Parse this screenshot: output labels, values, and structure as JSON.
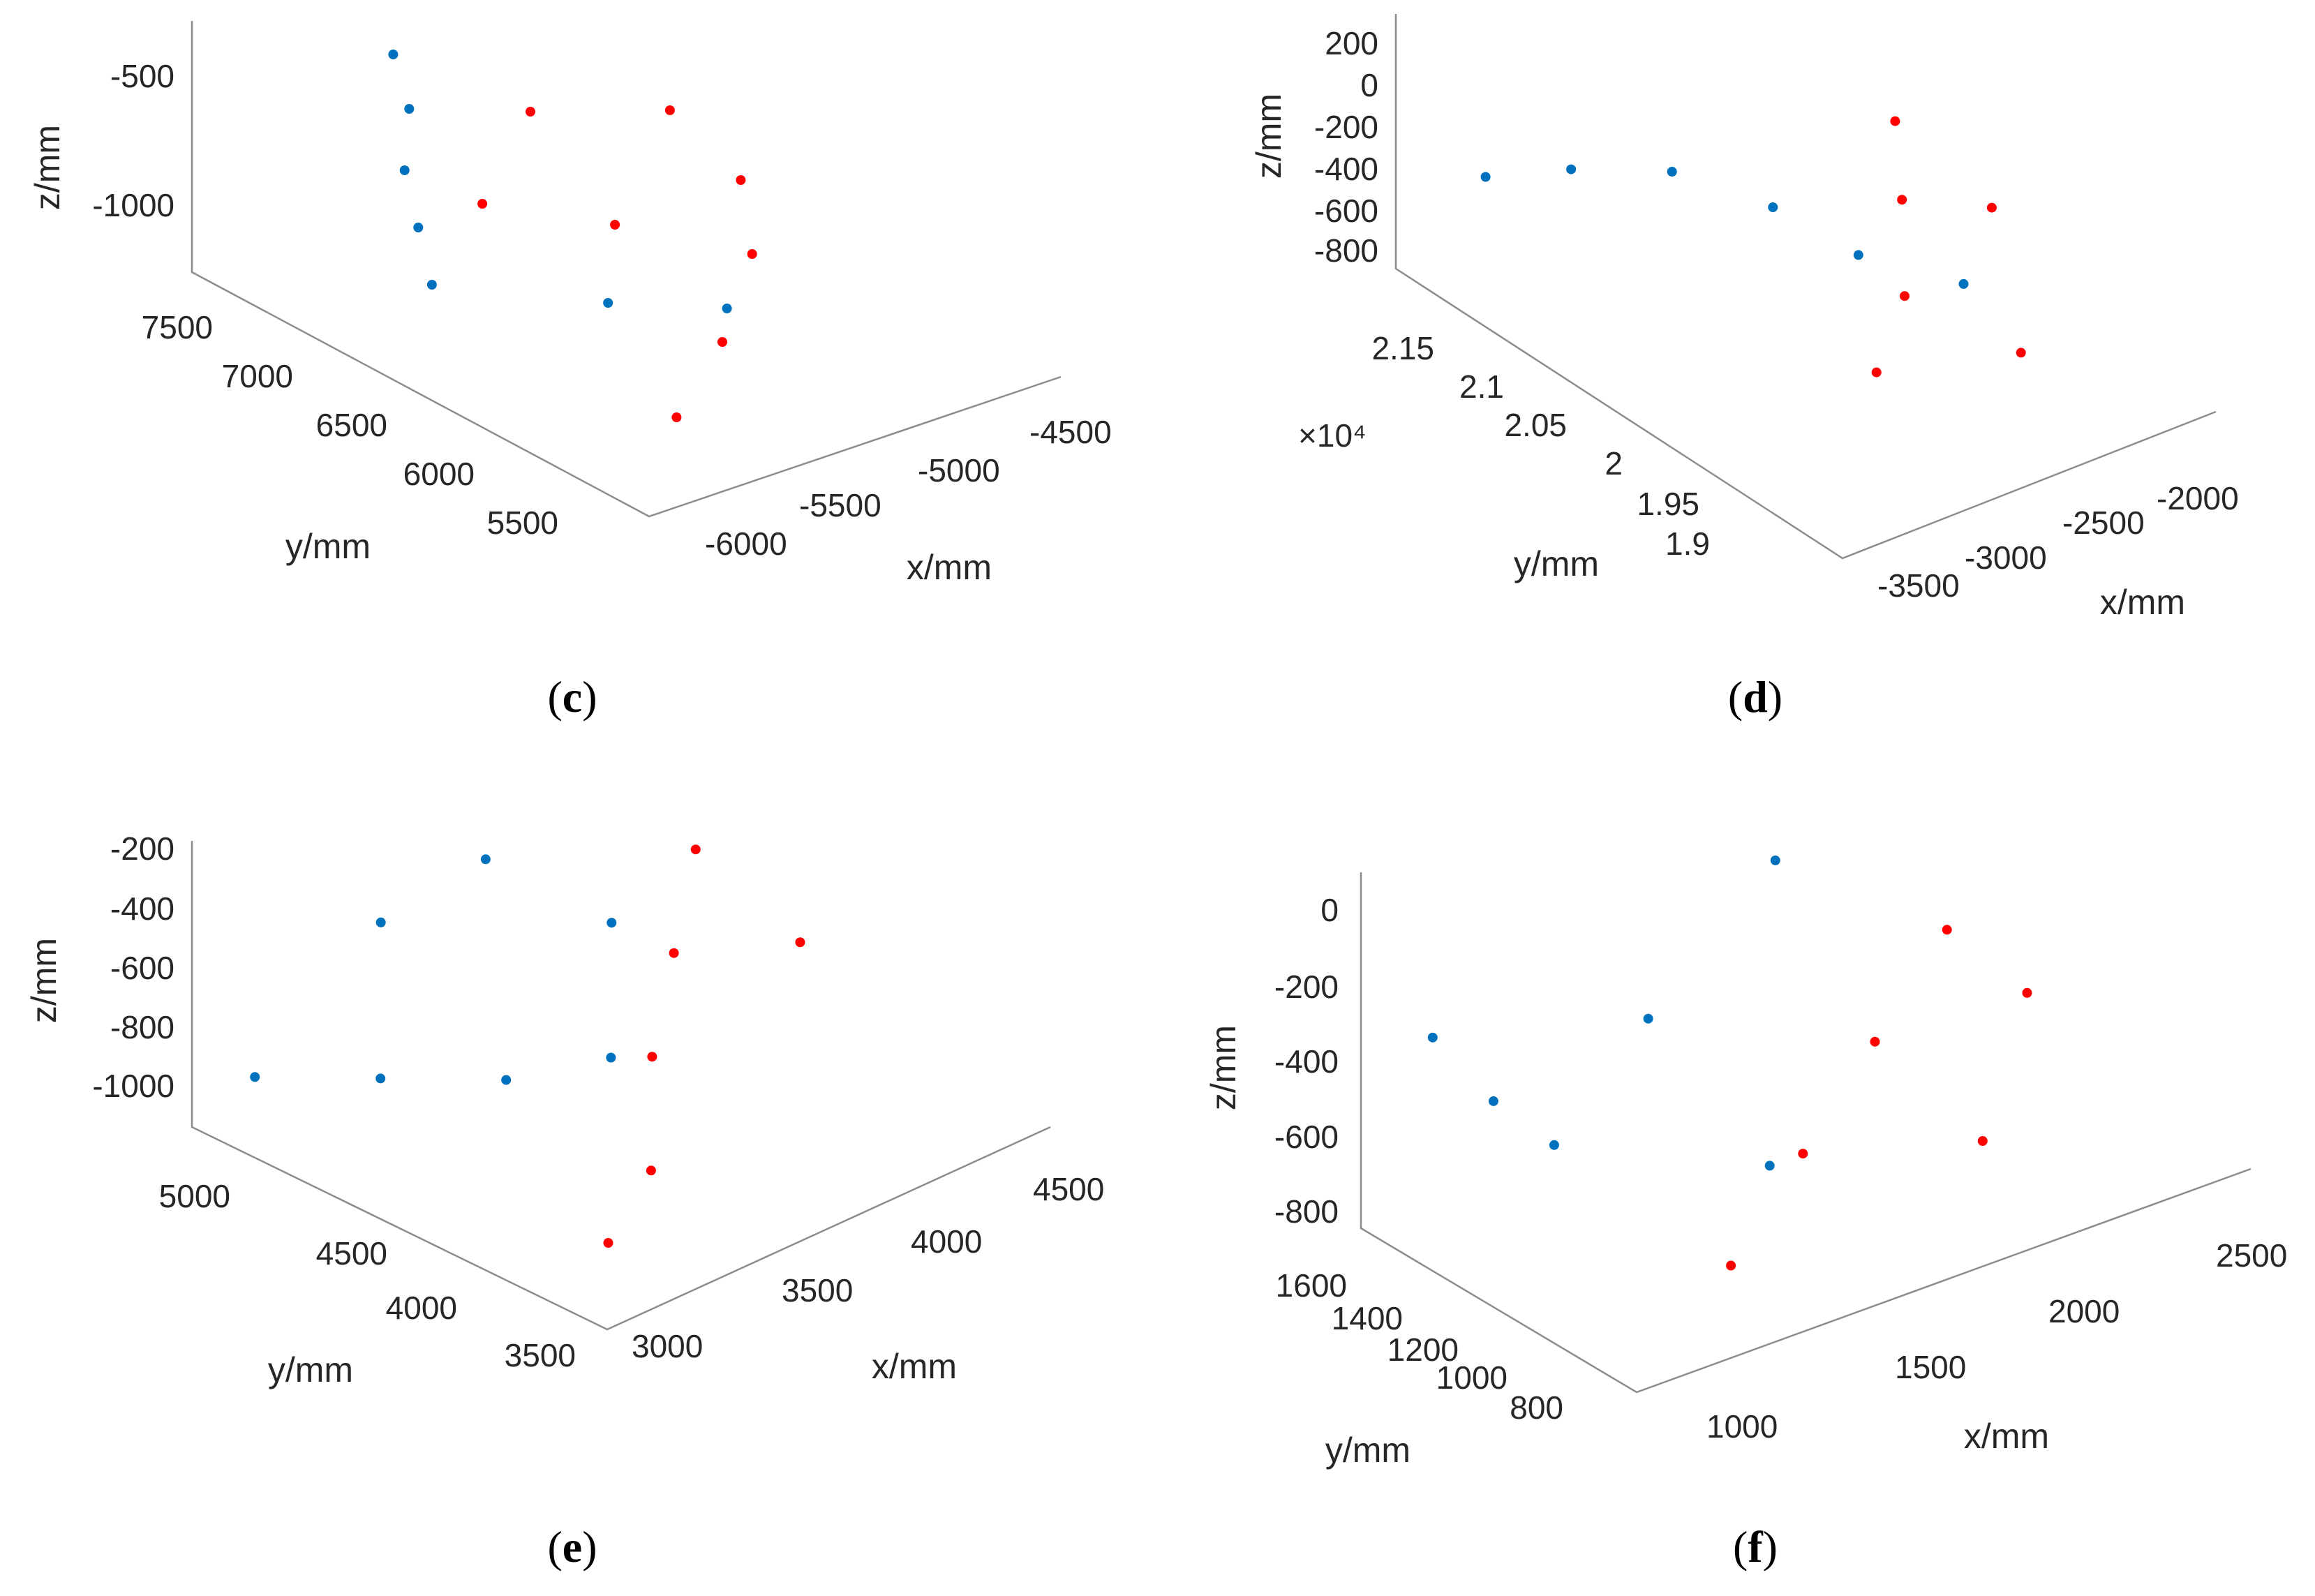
{
  "colors": {
    "series_a": "#0072BD",
    "series_b": "#FF0000",
    "axis": "#8c8c8c",
    "text": "#262626"
  },
  "chart_data": [
    {
      "panel": "c",
      "type": "scatter",
      "zlabel": "z/mm",
      "ylabel": "y/mm",
      "xlabel": "x/mm",
      "zticks": [
        "-500",
        "-1000"
      ],
      "yticks": [
        "7500",
        "7000",
        "6500",
        "6000",
        "5500"
      ],
      "xticks": [
        "-6000",
        "-5500",
        "-5000",
        "-4500"
      ],
      "xlim": [
        -6300,
        -4300
      ],
      "ylim": [
        5300,
        7800
      ],
      "zlim": [
        -1250,
        -350
      ],
      "series": [
        {
          "color": "#0072BD",
          "points": [
            [
              -5500,
              7600,
              -600
            ],
            [
              -5600,
              7400,
              -700
            ],
            [
              -5800,
              7200,
              -800
            ],
            [
              -6000,
              6900,
              -850
            ],
            [
              -6200,
              6600,
              -900
            ],
            [
              -5700,
              6200,
              -950
            ],
            [
              -5300,
              6000,
              -1000
            ]
          ]
        },
        {
          "color": "#FF0000",
          "points": [
            [
              -5900,
              5600,
              -1100
            ],
            [
              -5500,
              5800,
              -1000
            ],
            [
              -5000,
              6200,
              -950
            ],
            [
              -4700,
              6600,
              -900
            ],
            [
              -4600,
              7100,
              -850
            ],
            [
              -5100,
              7300,
              -800
            ],
            [
              -5600,
              7000,
              -900
            ],
            [
              -5400,
              6500,
              -850
            ]
          ]
        }
      ]
    },
    {
      "panel": "d",
      "type": "scatter",
      "zlabel": "z/mm",
      "ylabel": "y/mm",
      "xlabel": "x/mm",
      "zticks": [
        "200",
        "0",
        "-200",
        "-400",
        "-600",
        "-800"
      ],
      "yticks": [
        "2.15",
        "2.1",
        "2.05",
        "2",
        "1.95",
        "1.9"
      ],
      "y_exponent_label": "×10⁴",
      "xticks": [
        "-3500",
        "-3000",
        "-2500",
        "-2000"
      ],
      "xlim": [
        -3700,
        -1800
      ],
      "ylim": [
        18800,
        21700
      ],
      "zlim": [
        -900,
        250
      ],
      "series": [
        {
          "color": "#0072BD",
          "points": [
            [
              -3400,
              21500,
              -500
            ],
            [
              -3200,
              21200,
              -400
            ],
            [
              -3000,
              20800,
              -300
            ],
            [
              -2800,
              20400,
              -350
            ],
            [
              -2600,
              20100,
              -500
            ],
            [
              -2300,
              19800,
              -600
            ]
          ]
        },
        {
          "color": "#FF0000",
          "points": [
            [
              -2900,
              19600,
              -700
            ],
            [
              -2600,
              19800,
              -550
            ],
            [
              -2300,
              20200,
              -400
            ],
            [
              -2100,
              20500,
              -250
            ],
            [
              -2000,
              20000,
              -450
            ],
            [
              -2400,
              19300,
              -650
            ]
          ]
        }
      ]
    },
    {
      "panel": "e",
      "type": "scatter",
      "zlabel": "z/mm",
      "ylabel": "y/mm",
      "xlabel": "x/mm",
      "zticks": [
        "-200",
        "-400",
        "-600",
        "-800",
        "-1000"
      ],
      "yticks": [
        "5000",
        "4500",
        "4000",
        "3500"
      ],
      "xticks": [
        "3000",
        "3500",
        "4000",
        "4500"
      ],
      "xlim": [
        2700,
        4800
      ],
      "ylim": [
        3300,
        5300
      ],
      "zlim": [
        -1150,
        -100
      ],
      "series": [
        {
          "color": "#0072BD",
          "points": [
            [
              2900,
              5200,
              -1000
            ],
            [
              3200,
              4900,
              -1000
            ],
            [
              3500,
              4600,
              -1000
            ],
            [
              3800,
              4400,
              -950
            ],
            [
              3300,
              5000,
              -500
            ],
            [
              3600,
              4800,
              -300
            ],
            [
              4000,
              4600,
              -600
            ]
          ]
        },
        {
          "color": "#FF0000",
          "points": [
            [
              3000,
              3600,
              -1050
            ],
            [
              3400,
              3800,
              -1000
            ],
            [
              3700,
              4100,
              -800
            ],
            [
              4000,
              4300,
              -600
            ],
            [
              4300,
              4500,
              -400
            ],
            [
              4500,
              4200,
              -700
            ]
          ]
        }
      ]
    },
    {
      "panel": "f",
      "type": "scatter",
      "zlabel": "z/mm",
      "ylabel": "y/mm",
      "xlabel": "x/mm",
      "zticks": [
        "0",
        "-200",
        "-400",
        "-600",
        "-800"
      ],
      "yticks": [
        "1600",
        "1400",
        "1200",
        "1000",
        "800"
      ],
      "xticks": [
        "1000",
        "1500",
        "2000",
        "2500"
      ],
      "xlim": [
        850,
        2700
      ],
      "ylim": [
        700,
        1700
      ],
      "zlim": [
        -850,
        50
      ],
      "series": [
        {
          "color": "#0072BD",
          "points": [
            [
              900,
              1500,
              -300
            ],
            [
              1000,
              1400,
              -450
            ],
            [
              1100,
              1300,
              -550
            ],
            [
              1300,
              1200,
              -250
            ],
            [
              1600,
              1100,
              100
            ],
            [
              1500,
              1000,
              -600
            ]
          ]
        },
        {
          "color": "#FF0000",
          "points": [
            [
              1300,
              900,
              -750
            ],
            [
              1600,
              1000,
              -600
            ],
            [
              1900,
              1100,
              -450
            ],
            [
              2200,
              1200,
              -300
            ],
            [
              2400,
              1150,
              -500
            ],
            [
              2100,
              950,
              -700
            ]
          ]
        }
      ]
    }
  ],
  "captions": [
    {
      "open": "(",
      "letter": "c",
      "close": ")"
    },
    {
      "open": "(",
      "letter": "d",
      "close": ")"
    },
    {
      "open": "(",
      "letter": "e",
      "close": ")"
    },
    {
      "open": "(",
      "letter": "f",
      "close": ")"
    }
  ]
}
